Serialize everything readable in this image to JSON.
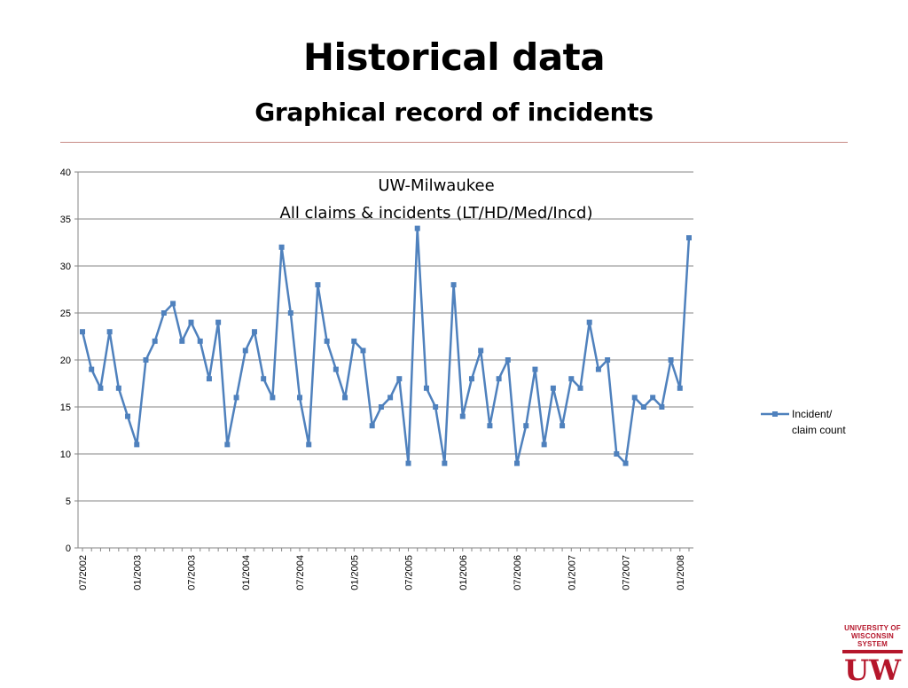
{
  "slide": {
    "title": "Historical data",
    "subtitle": "Graphical record of incidents"
  },
  "logo": {
    "line1": "UNIVERSITY OF",
    "line2": "WISCONSIN SYSTEM",
    "mark": "UW",
    "color": "#b5162b"
  },
  "chart_data": {
    "type": "line",
    "title_line1": "UW-Milwaukee",
    "title_line2": "All claims & incidents (LT/HD/Med/Incd)",
    "xlabel": "",
    "ylabel": "",
    "ylim": [
      0,
      40
    ],
    "yticks": [
      0,
      5,
      10,
      15,
      20,
      25,
      30,
      35,
      40
    ],
    "grid": true,
    "legend_position": "right",
    "series_color": "#4f81bd",
    "x_tick_labels": [
      "07/2002",
      "01/2003",
      "07/2003",
      "01/2004",
      "07/2004",
      "01/2005",
      "07/2005",
      "01/2006",
      "07/2006",
      "01/2007",
      "07/2007",
      "01/2008"
    ],
    "series": [
      {
        "name": "Incident/ claim count",
        "legend_lines": [
          "Incident/",
          "claim count"
        ],
        "x": [
          "07/2002",
          "08/2002",
          "09/2002",
          "10/2002",
          "11/2002",
          "12/2002",
          "01/2003",
          "02/2003",
          "03/2003",
          "04/2003",
          "05/2003",
          "06/2003",
          "07/2003",
          "08/2003",
          "09/2003",
          "10/2003",
          "11/2003",
          "12/2003",
          "01/2004",
          "02/2004",
          "03/2004",
          "04/2004",
          "05/2004",
          "06/2004",
          "07/2004",
          "08/2004",
          "09/2004",
          "10/2004",
          "11/2004",
          "12/2004",
          "01/2005",
          "02/2005",
          "03/2005",
          "04/2005",
          "05/2005",
          "06/2005",
          "07/2005",
          "08/2005",
          "09/2005",
          "10/2005",
          "11/2005",
          "12/2005",
          "01/2006",
          "02/2006",
          "03/2006",
          "04/2006",
          "05/2006",
          "06/2006",
          "07/2006",
          "08/2006",
          "09/2006",
          "10/2006",
          "11/2006",
          "12/2006",
          "01/2007",
          "02/2007",
          "03/2007",
          "04/2007",
          "05/2007",
          "06/2007",
          "07/2007",
          "08/2007",
          "09/2007",
          "10/2007",
          "11/2007",
          "12/2007",
          "01/2008",
          "02/2008"
        ],
        "values": [
          23,
          19,
          17,
          23,
          17,
          14,
          11,
          20,
          22,
          25,
          26,
          22,
          24,
          22,
          18,
          24,
          11,
          16,
          21,
          23,
          18,
          16,
          32,
          25,
          16,
          11,
          28,
          22,
          19,
          16,
          22,
          21,
          13,
          15,
          16,
          18,
          9,
          34,
          17,
          15,
          9,
          28,
          14,
          18,
          21,
          13,
          18,
          20,
          9,
          13,
          19,
          11,
          17,
          13,
          18,
          17,
          24,
          19,
          20,
          10,
          9,
          16,
          15,
          16,
          15,
          20,
          17,
          33
        ]
      }
    ]
  }
}
